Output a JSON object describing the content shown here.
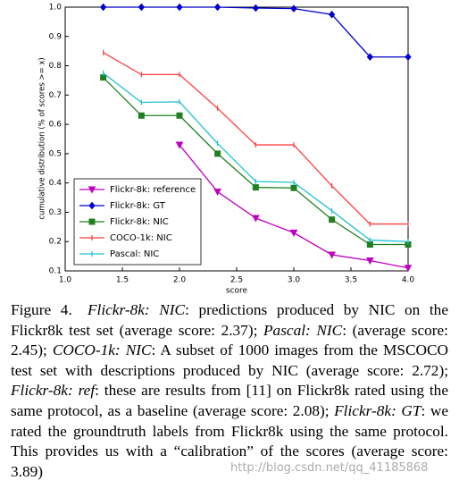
{
  "chart_data": {
    "type": "line",
    "xlabel": "score",
    "ylabel": "cumulative distribution (% of scores >= x)",
    "xlim": [
      1.0,
      4.0
    ],
    "ylim": [
      0.1,
      1.0
    ],
    "xticks": [
      {
        "value": 1,
        "label": "1.0"
      },
      1.5,
      {
        "value": 2,
        "label": "2.0"
      },
      2.5,
      {
        "value": 3,
        "label": "3.0"
      },
      3.5,
      {
        "value": 4,
        "label": "4.0"
      }
    ],
    "yticks": [
      0.1,
      0.2,
      0.3,
      0.4,
      0.5,
      0.6,
      0.7,
      0.8,
      0.9,
      {
        "value": 1,
        "label": "1.0"
      }
    ],
    "legend": "lower left",
    "series": [
      {
        "name": "Flickr-8k: reference",
        "color": "#bf00bf",
        "marker": "triangle-down",
        "x": [
          2.0,
          2.333,
          2.667,
          3.0,
          3.333,
          3.667,
          4.0
        ],
        "values": [
          0.53,
          0.37,
          0.28,
          0.23,
          0.155,
          0.135,
          0.11
        ]
      },
      {
        "name": "Flickr-8k: GT",
        "color": "#0000cc",
        "marker": "diamond",
        "x": [
          1.333,
          1.667,
          2.0,
          2.333,
          2.667,
          3.0,
          3.333,
          3.667,
          4.0
        ],
        "values": [
          1.0,
          1.0,
          1.0,
          1.0,
          0.997,
          0.995,
          0.975,
          0.83,
          0.83
        ]
      },
      {
        "name": "Flickr-8k: NIC",
        "color": "#208020",
        "marker": "square",
        "x": [
          1.333,
          1.667,
          2.0,
          2.333,
          2.667,
          3.0,
          3.333,
          3.667,
          4.0
        ],
        "values": [
          0.76,
          0.63,
          0.63,
          0.5,
          0.385,
          0.383,
          0.275,
          0.19,
          0.19
        ]
      },
      {
        "name": "COCO-1k: NIC",
        "color": "#ff4040",
        "marker": "none",
        "x": [
          1.333,
          1.667,
          2.0,
          2.333,
          2.667,
          3.0,
          3.333,
          3.667,
          4.0
        ],
        "values": [
          0.845,
          0.77,
          0.77,
          0.655,
          0.53,
          0.53,
          0.39,
          0.26,
          0.26
        ]
      },
      {
        "name": "Pascal: NIC",
        "color": "#20c0d0",
        "marker": "none",
        "x": [
          1.333,
          1.667,
          2.0,
          2.333,
          2.667,
          3.0,
          3.333,
          3.667,
          4.0
        ],
        "values": [
          0.775,
          0.675,
          0.677,
          0.535,
          0.405,
          0.402,
          0.305,
          0.205,
          0.2
        ]
      }
    ]
  },
  "caption": {
    "segments": [
      {
        "text": "Figure 4. ",
        "style": "normal"
      },
      {
        "text": "Flickr-8k: NIC",
        "style": "italic"
      },
      {
        "text": ": predictions produced by NIC on the Flickr8k test set (average score: 2.37); ",
        "style": "normal"
      },
      {
        "text": "Pascal: NIC",
        "style": "italic"
      },
      {
        "text": ": (average score: 2.45); ",
        "style": "normal"
      },
      {
        "text": "COCO-1k: NIC",
        "style": "italic"
      },
      {
        "text": ": A subset of 1000 images from the MSCOCO test set with descriptions produced by NIC (average score: 2.72); ",
        "style": "normal"
      },
      {
        "text": "Flickr-8k: ref",
        "style": "italic"
      },
      {
        "text": ": these are results from [11] on Flickr8k rated using the same protocol, as a baseline (average score: 2.08); ",
        "style": "normal"
      },
      {
        "text": "Flickr-8k: GT",
        "style": "italic"
      },
      {
        "text": ": we rated the groundtruth labels from Flickr8k using the same protocol. This provides us with a “calibration” of the scores (average score: 3.89)",
        "style": "normal"
      }
    ]
  },
  "watermark": "http://blog.csdn.net/qq_41185868"
}
